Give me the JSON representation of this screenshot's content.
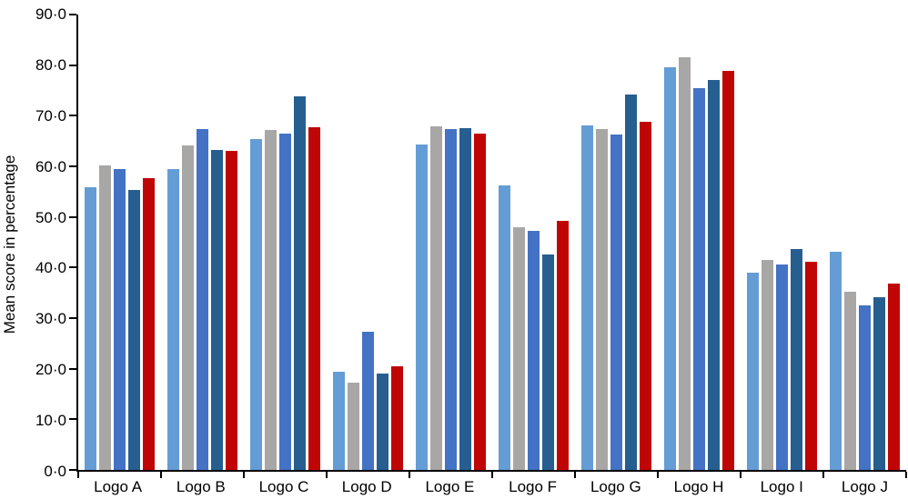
{
  "chart_data": {
    "type": "bar",
    "title": "",
    "xlabel": "",
    "ylabel": "Mean score in percentage",
    "ylim": [
      0,
      90
    ],
    "ytick_step": 10,
    "ytick_labels": [
      "0·0",
      "10·0",
      "20·0",
      "30·0",
      "40·0",
      "50·0",
      "60·0",
      "70·0",
      "80·0",
      "90·0"
    ],
    "categories": [
      "Logo A",
      "Logo B",
      "Logo C",
      "Logo D",
      "Logo E",
      "Logo F",
      "Logo G",
      "Logo H",
      "Logo I",
      "Logo J"
    ],
    "series": [
      {
        "name": "series-1-light-blue",
        "color": "#649DD5",
        "values": [
          55.8,
          59.5,
          65.4,
          19.4,
          64.3,
          56.3,
          68.0,
          79.6,
          38.9,
          43.1
        ]
      },
      {
        "name": "series-2-grey",
        "color": "#A9A6A6",
        "values": [
          60.1,
          64.2,
          67.1,
          17.3,
          67.9,
          47.9,
          67.4,
          81.6,
          41.5,
          35.3
        ]
      },
      {
        "name": "series-3-medium-blue",
        "color": "#4472C4",
        "values": [
          59.5,
          67.4,
          66.4,
          27.3,
          67.4,
          47.2,
          66.3,
          75.4,
          40.6,
          32.6
        ]
      },
      {
        "name": "series-4-dark-blue",
        "color": "#265E90",
        "values": [
          55.4,
          63.2,
          73.8,
          19.0,
          67.5,
          42.6,
          74.2,
          77.0,
          43.7,
          34.2
        ]
      },
      {
        "name": "series-5-red",
        "color": "#C00505",
        "values": [
          57.6,
          63.1,
          67.7,
          20.4,
          66.5,
          49.3,
          68.8,
          78.8,
          41.2,
          36.9
        ]
      }
    ],
    "legend": "none",
    "grid": "off",
    "background": "#FFFFFF",
    "axis_color": "#000000"
  }
}
